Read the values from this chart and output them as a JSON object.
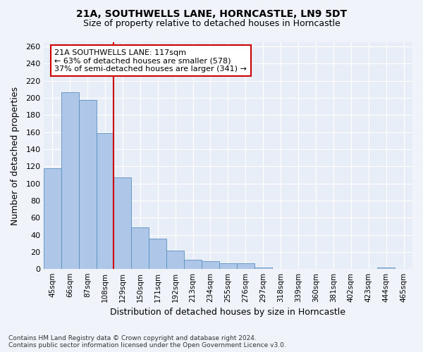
{
  "title": "21A, SOUTHWELLS LANE, HORNCASTLE, LN9 5DT",
  "subtitle": "Size of property relative to detached houses in Horncastle",
  "xlabel": "Distribution of detached houses by size in Horncastle",
  "ylabel": "Number of detached properties",
  "categories": [
    "45sqm",
    "66sqm",
    "87sqm",
    "108sqm",
    "129sqm",
    "150sqm",
    "171sqm",
    "192sqm",
    "213sqm",
    "234sqm",
    "255sqm",
    "276sqm",
    "297sqm",
    "318sqm",
    "339sqm",
    "360sqm",
    "381sqm",
    "402sqm",
    "423sqm",
    "444sqm",
    "465sqm"
  ],
  "values": [
    118,
    207,
    198,
    159,
    107,
    49,
    36,
    22,
    11,
    9,
    7,
    7,
    2,
    0,
    0,
    0,
    0,
    0,
    0,
    2,
    0
  ],
  "bar_color": "#aec6e8",
  "bar_edge_color": "#5a8fc0",
  "vline_color": "#cc0000",
  "vline_x": 3.5,
  "annotation_text": "21A SOUTHWELLS LANE: 117sqm\n← 63% of detached houses are smaller (578)\n37% of semi-detached houses are larger (341) →",
  "annotation_box_color": "#ffffff",
  "annotation_box_edge": "#cc0000",
  "ylim": [
    0,
    265
  ],
  "yticks": [
    0,
    20,
    40,
    60,
    80,
    100,
    120,
    140,
    160,
    180,
    200,
    220,
    240,
    260
  ],
  "bg_color": "#e8eef7",
  "grid_color": "#ffffff",
  "fig_bg_color": "#f0f4fa",
  "footnote": "Contains HM Land Registry data © Crown copyright and database right 2024.\nContains public sector information licensed under the Open Government Licence v3.0."
}
